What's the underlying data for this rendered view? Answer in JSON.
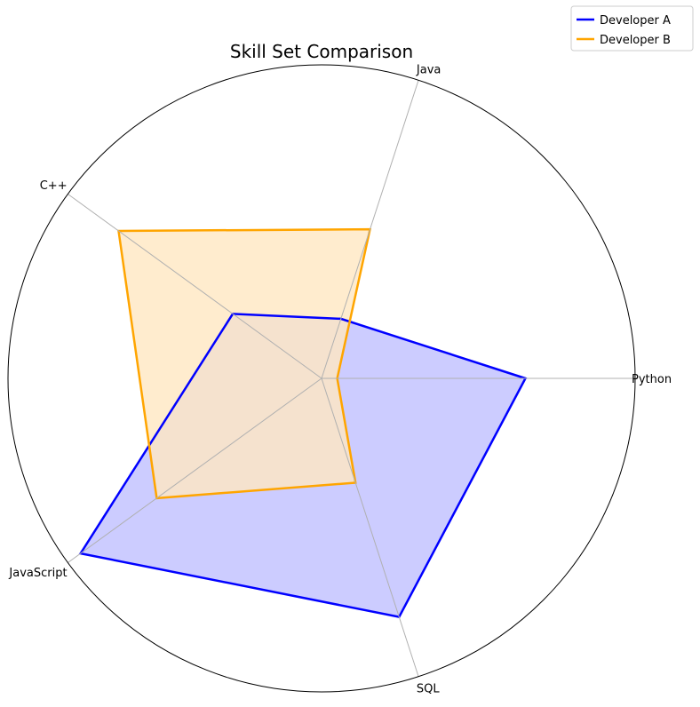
{
  "chart_data": {
    "type": "radar",
    "title": "Skill Set Comparison",
    "categories": [
      "Python",
      "Java",
      "C++",
      "JavaScript",
      "SQL"
    ],
    "rlim": [
      0,
      10
    ],
    "grid": true,
    "legend_position": "top-right",
    "series": [
      {
        "name": "Developer A",
        "values": [
          6.5,
          2.0,
          3.5,
          9.5,
          8.0
        ],
        "color": "#0000ff",
        "fill": "#bfbfff"
      },
      {
        "name": "Developer B",
        "values": [
          0.5,
          5.0,
          8.0,
          6.5,
          3.5
        ],
        "color": "#ffa500",
        "fill": "#ffe7c2"
      }
    ]
  }
}
